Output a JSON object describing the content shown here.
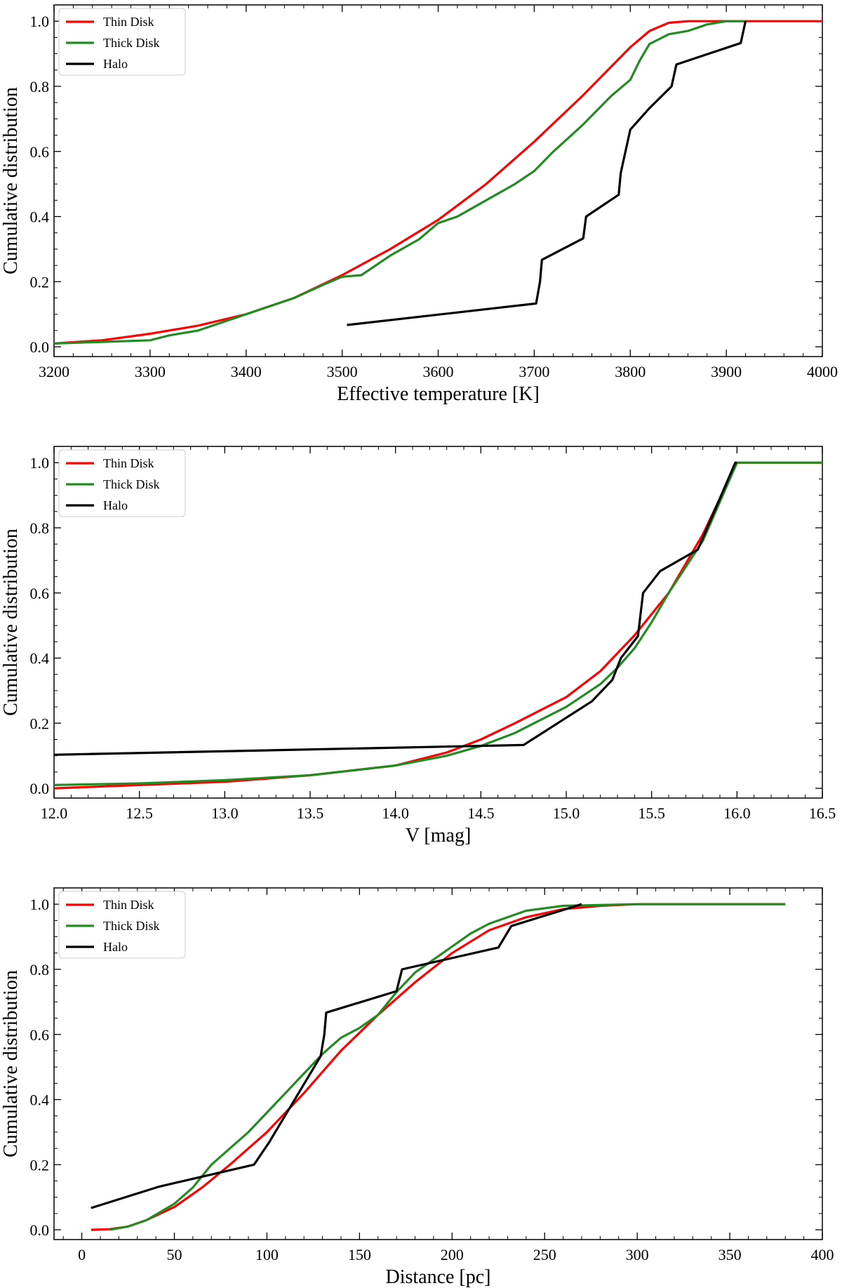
{
  "legend_labels": [
    "Thin Disk",
    "Thick Disk",
    "Halo"
  ],
  "colors": {
    "thin": "#ff0000",
    "thick": "#228b22",
    "halo": "#000000",
    "axes": "#000000"
  },
  "chart_data": [
    {
      "type": "line",
      "xlabel": "Effective temperature [K]",
      "ylabel": "Cumulative distribution",
      "xlim": [
        3200,
        4000
      ],
      "ylim": [
        -0.03,
        1.05
      ],
      "xticks": [
        3200,
        3300,
        3400,
        3500,
        3600,
        3700,
        3800,
        3900,
        4000
      ],
      "xtick_labels": [
        "3200",
        "3300",
        "3400",
        "3500",
        "3600",
        "3700",
        "3800",
        "3900",
        "4000"
      ],
      "yticks": [
        0.0,
        0.2,
        0.4,
        0.6,
        0.8,
        1.0
      ],
      "ytick_labels": [
        "0.0",
        "0.2",
        "0.4",
        "0.6",
        "0.8",
        "1.0"
      ],
      "legend": [
        "Thin Disk",
        "Thick Disk",
        "Halo"
      ],
      "series": [
        {
          "name": "Thin Disk",
          "color": "#ff0000",
          "x": [
            3200,
            3250,
            3300,
            3350,
            3400,
            3450,
            3500,
            3550,
            3600,
            3650,
            3700,
            3750,
            3780,
            3800,
            3820,
            3840,
            3860,
            3900,
            4000
          ],
          "y": [
            0.01,
            0.02,
            0.04,
            0.065,
            0.1,
            0.15,
            0.22,
            0.3,
            0.39,
            0.5,
            0.63,
            0.77,
            0.86,
            0.92,
            0.97,
            0.995,
            1.0,
            1.0,
            1.0
          ]
        },
        {
          "name": "Thick Disk",
          "color": "#228b22",
          "x": [
            3200,
            3250,
            3300,
            3320,
            3350,
            3380,
            3400,
            3450,
            3480,
            3500,
            3520,
            3550,
            3580,
            3600,
            3620,
            3650,
            3680,
            3700,
            3720,
            3750,
            3780,
            3800,
            3810,
            3820,
            3840,
            3860,
            3880,
            3900,
            3920
          ],
          "y": [
            0.01,
            0.015,
            0.02,
            0.035,
            0.05,
            0.08,
            0.1,
            0.15,
            0.19,
            0.215,
            0.22,
            0.28,
            0.33,
            0.38,
            0.4,
            0.45,
            0.5,
            0.54,
            0.6,
            0.68,
            0.77,
            0.82,
            0.88,
            0.93,
            0.96,
            0.97,
            0.99,
            1.0,
            1.0
          ]
        },
        {
          "name": "Halo",
          "color": "#000000",
          "x": [
            3505,
            3702,
            3706,
            3708,
            3751,
            3754,
            3788,
            3790,
            3795,
            3800,
            3820,
            3843,
            3848,
            3915,
            3920
          ],
          "y": [
            0.067,
            0.133,
            0.2,
            0.267,
            0.333,
            0.4,
            0.467,
            0.533,
            0.6,
            0.667,
            0.733,
            0.8,
            0.867,
            0.933,
            1.0
          ]
        }
      ]
    },
    {
      "type": "line",
      "xlabel": "V [mag]",
      "ylabel": "Cumulative distribution",
      "xlim": [
        12.0,
        16.5
      ],
      "ylim": [
        -0.03,
        1.05
      ],
      "xticks": [
        12.0,
        12.5,
        13.0,
        13.5,
        14.0,
        14.5,
        15.0,
        15.5,
        16.0,
        16.5
      ],
      "xtick_labels": [
        "12.0",
        "12.5",
        "13.0",
        "13.5",
        "14.0",
        "14.5",
        "15.0",
        "15.5",
        "16.0",
        "16.5"
      ],
      "yticks": [
        0.0,
        0.2,
        0.4,
        0.6,
        0.8,
        1.0
      ],
      "ytick_labels": [
        "0.0",
        "0.2",
        "0.4",
        "0.6",
        "0.8",
        "1.0"
      ],
      "legend": [
        "Thin Disk",
        "Thick Disk",
        "Halo"
      ],
      "series": [
        {
          "name": "Thin Disk",
          "color": "#ff0000",
          "x": [
            12.0,
            12.5,
            13.0,
            13.5,
            14.0,
            14.3,
            14.5,
            14.7,
            15.0,
            15.2,
            15.4,
            15.6,
            15.8,
            16.0,
            16.5
          ],
          "y": [
            0.0,
            0.01,
            0.02,
            0.04,
            0.07,
            0.11,
            0.15,
            0.2,
            0.28,
            0.36,
            0.47,
            0.6,
            0.78,
            1.0,
            1.0
          ]
        },
        {
          "name": "Thick Disk",
          "color": "#228b22",
          "x": [
            12.0,
            12.5,
            13.0,
            13.5,
            14.0,
            14.3,
            14.5,
            14.7,
            15.0,
            15.2,
            15.3,
            15.4,
            15.5,
            15.6,
            15.8,
            16.0,
            16.5
          ],
          "y": [
            0.01,
            0.015,
            0.025,
            0.04,
            0.07,
            0.1,
            0.13,
            0.17,
            0.25,
            0.32,
            0.37,
            0.43,
            0.51,
            0.6,
            0.76,
            1.0,
            1.0
          ]
        },
        {
          "name": "Halo",
          "color": "#000000",
          "x": [
            12.0,
            14.75,
            14.95,
            15.15,
            15.27,
            15.32,
            15.42,
            15.45,
            15.55,
            15.77,
            15.99,
            16.0
          ],
          "y": [
            0.103,
            0.133,
            0.2,
            0.267,
            0.333,
            0.4,
            0.467,
            0.6,
            0.667,
            0.733,
            1.0,
            1.0
          ]
        }
      ]
    },
    {
      "type": "line",
      "xlabel": "Distance [pc]",
      "ylabel": "Cumulative distribution",
      "xlim": [
        -15,
        400
      ],
      "ylim": [
        -0.03,
        1.05
      ],
      "xticks": [
        0,
        50,
        100,
        150,
        200,
        250,
        300,
        350,
        400
      ],
      "xtick_labels": [
        "0",
        "50",
        "100",
        "150",
        "200",
        "250",
        "300",
        "350",
        "400"
      ],
      "yticks": [
        0.0,
        0.2,
        0.4,
        0.6,
        0.8,
        1.0
      ],
      "ytick_labels": [
        "0.0",
        "0.2",
        "0.4",
        "0.6",
        "0.8",
        "1.0"
      ],
      "legend": [
        "Thin Disk",
        "Thick Disk",
        "Halo"
      ],
      "series": [
        {
          "name": "Thin Disk",
          "color": "#ff0000",
          "x": [
            5,
            15,
            25,
            35,
            50,
            65,
            80,
            100,
            120,
            140,
            160,
            180,
            200,
            220,
            240,
            260,
            280,
            300,
            350,
            380
          ],
          "y": [
            0.0,
            0.002,
            0.01,
            0.03,
            0.07,
            0.13,
            0.2,
            0.3,
            0.42,
            0.55,
            0.66,
            0.76,
            0.85,
            0.92,
            0.96,
            0.985,
            0.995,
            1.0,
            1.0,
            1.0
          ]
        },
        {
          "name": "Thick Disk",
          "color": "#228b22",
          "x": [
            15,
            25,
            35,
            50,
            60,
            70,
            80,
            90,
            100,
            110,
            120,
            130,
            140,
            150,
            160,
            170,
            180,
            190,
            200,
            210,
            220,
            240,
            260,
            300,
            380
          ],
          "y": [
            0.0,
            0.01,
            0.03,
            0.08,
            0.13,
            0.2,
            0.25,
            0.3,
            0.36,
            0.42,
            0.48,
            0.54,
            0.59,
            0.62,
            0.66,
            0.73,
            0.79,
            0.83,
            0.87,
            0.91,
            0.94,
            0.98,
            0.995,
            1.0,
            1.0
          ]
        },
        {
          "name": "Halo",
          "color": "#000000",
          "x": [
            5,
            42,
            93,
            101,
            129,
            131,
            132,
            170,
            173,
            225,
            232,
            270
          ],
          "y": [
            0.067,
            0.133,
            0.2,
            0.267,
            0.533,
            0.6,
            0.667,
            0.733,
            0.8,
            0.867,
            0.933,
            1.0
          ]
        }
      ]
    }
  ]
}
